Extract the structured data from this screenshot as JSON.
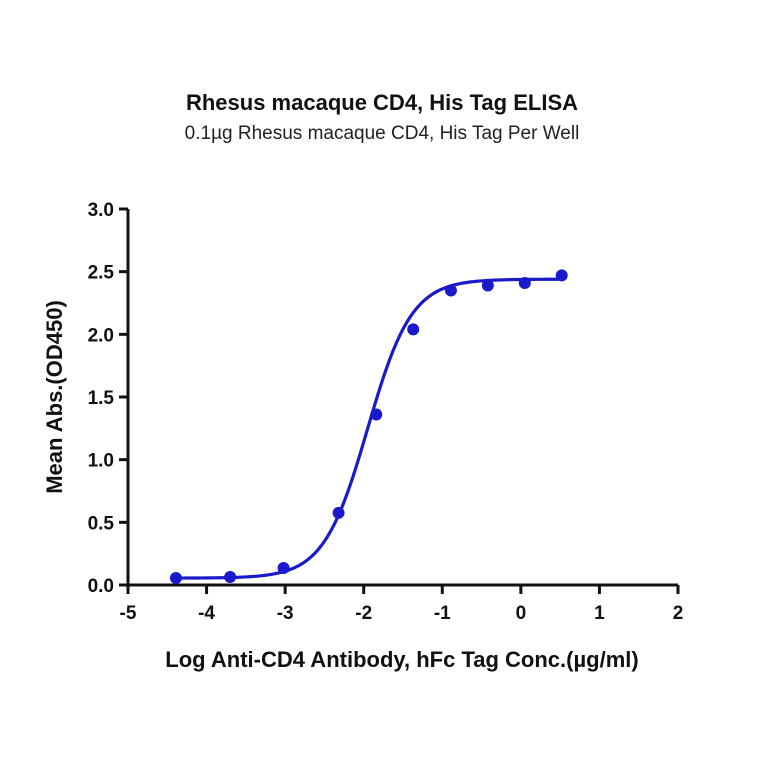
{
  "chart_data": {
    "type": "line",
    "title": "Rhesus macaque CD4, His Tag ELISA",
    "subtitle": "0.1µg Rhesus macaque CD4, His Tag Per Well",
    "xlabel": "Log Anti-CD4 Antibody, hFc Tag Conc.(µg/ml)",
    "ylabel": "Mean Abs.(OD450)",
    "xlim": [
      -5,
      2
    ],
    "ylim": [
      0,
      3.0
    ],
    "xticks": [
      "-5",
      "-4",
      "-3",
      "-2",
      "-1",
      "0",
      "1",
      "2"
    ],
    "yticks": [
      "0.0",
      "0.5",
      "1.0",
      "1.5",
      "2.0",
      "2.5",
      "3.0"
    ],
    "grid": false,
    "legend": null,
    "series": [
      {
        "name": "Rhesus macaque CD4, His Tag",
        "color": "#1a1acc",
        "fit": "4-parameter logistic",
        "x": [
          -4.39,
          -3.7,
          -3.02,
          -2.32,
          -1.84,
          -1.37,
          -0.89,
          -0.42,
          0.05,
          0.52
        ],
        "y": [
          0.056,
          0.064,
          0.136,
          0.575,
          1.36,
          2.04,
          2.35,
          2.39,
          2.41,
          2.47
        ]
      }
    ]
  }
}
